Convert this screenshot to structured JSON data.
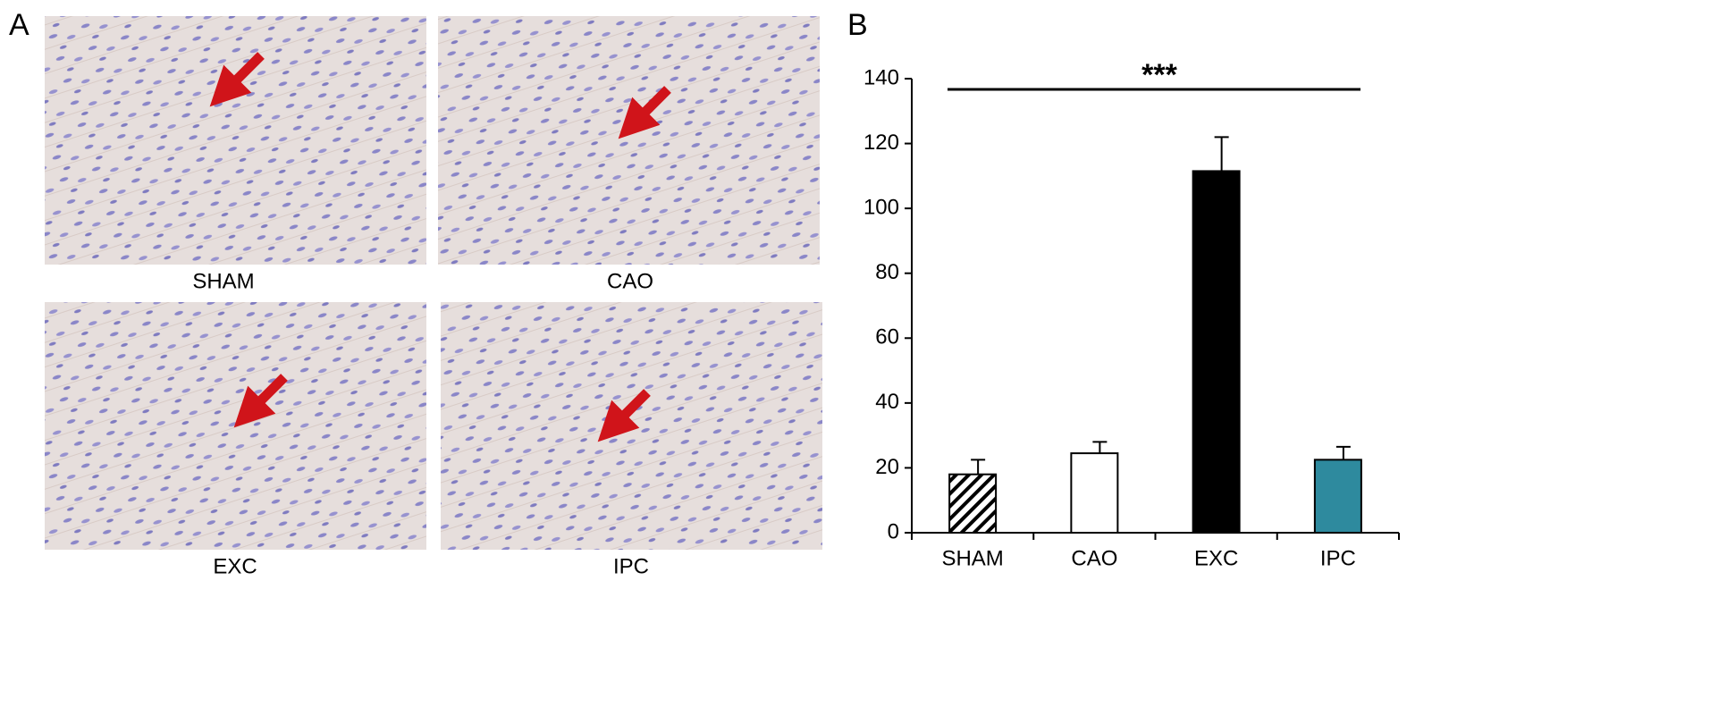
{
  "panel_labels": [
    "A",
    "B"
  ],
  "micrographs": [
    {
      "label": "SHAM"
    },
    {
      "label": "CAO"
    },
    {
      "label": "EXC"
    },
    {
      "label": "IPC"
    }
  ],
  "chart_data": {
    "type": "bar",
    "categories": [
      "SHAM",
      "CAO",
      "EXC",
      "IPC"
    ],
    "values": [
      18,
      24.5,
      111.5,
      22.5
    ],
    "errors": [
      4.5,
      3.5,
      10.5,
      4
    ],
    "colors": [
      "#ffffff",
      "#ffffff",
      "#000000",
      "#2e8a9e"
    ],
    "hatch": [
      true,
      false,
      false,
      false
    ],
    "ylim": [
      0,
      140
    ],
    "yticks": [
      0,
      20,
      40,
      60,
      80,
      100,
      120,
      140
    ],
    "significance": "***"
  }
}
